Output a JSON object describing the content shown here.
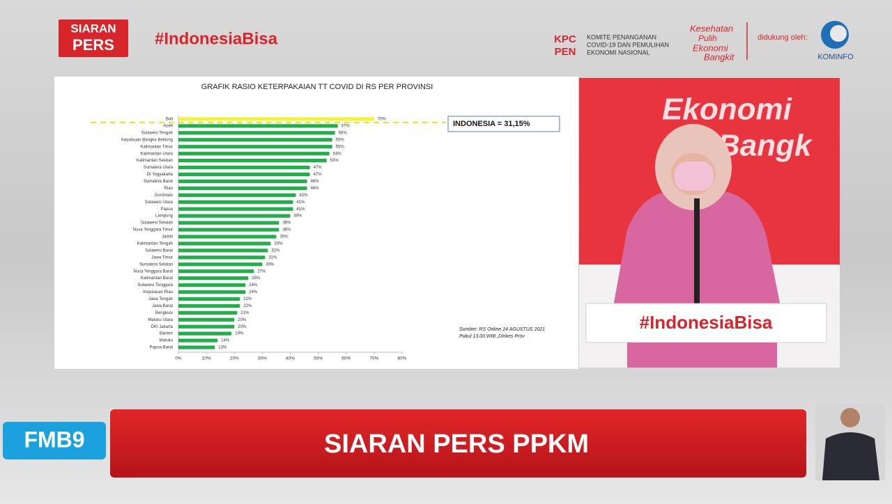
{
  "header": {
    "siaran": "SIARAN",
    "pers": "PERS",
    "hashtag": "#IndonesiaBisa",
    "kpc": "KPC",
    "pen": "PEN",
    "committee": [
      "KOMITE PENANGANAN",
      "COVID-19 DAN PEMULIHAN",
      "EKONOMI NASIONAL"
    ],
    "slogan": [
      "Kesehatan",
      "Pulih",
      "Ekonomi",
      "Bangkit"
    ],
    "supported": "didukung oleh:",
    "kominfo": "KOMINFO"
  },
  "chart_data": {
    "type": "bar",
    "orientation": "horizontal",
    "title": "GRAFIK RASIO KETERPAKAIAN TT COVID DI RS PER PROVINSI",
    "categories": [
      "Bali",
      "Aceh",
      "Sulawesi Tengah",
      "Kepulauan Bangka Belitung",
      "Kalimantan Timur",
      "Kalimantan Utara",
      "Kalimantan Selatan",
      "Sumatera Utara",
      "DI Yogyakarta",
      "Sumatera Barat",
      "Riau",
      "Gorontalo",
      "Sulawesi Utara",
      "Papua",
      "Lampung",
      "Sulawesi Selatan",
      "Nusa Tenggara Timur",
      "Jambi",
      "Kalimantan Tengah",
      "Sulawesi Barat",
      "Jawa Timur",
      "Sumatera Selatan",
      "Nusa Tenggara Barat",
      "Kalimantan Barat",
      "Sulawesi Tenggara",
      "Kepulauan Riau",
      "Jawa Tengah",
      "Jawa Barat",
      "Bengkulu",
      "Maluku Utara",
      "DKI Jakarta",
      "Banten",
      "Maluku",
      "Papua Barat"
    ],
    "values": [
      70,
      57,
      56,
      55,
      55,
      54,
      53,
      47,
      47,
      46,
      46,
      42,
      41,
      41,
      40,
      36,
      36,
      35,
      33,
      32,
      31,
      30,
      27,
      25,
      24,
      24,
      22,
      22,
      21,
      20,
      20,
      19,
      14,
      13
    ],
    "value_labels": [
      "70%",
      "57%",
      "56%",
      "55%",
      "55%",
      "54%",
      "53%",
      "47%",
      "47%",
      "46%",
      "46%",
      "42%",
      "41%",
      "41%",
      "40%",
      "36%",
      "36%",
      "35%",
      "33%",
      "32%",
      "31%",
      "30%",
      "27%",
      "25%",
      "24%",
      "24%",
      "22%",
      "22%",
      "21%",
      "20%",
      "20%",
      "19%",
      "14%",
      "13%"
    ],
    "colors": [
      "#f2f23c",
      "#22ae4a",
      "#22ae4a",
      "#22ae4a",
      "#22ae4a",
      "#22ae4a",
      "#22ae4a",
      "#22ae4a",
      "#22ae4a",
      "#22ae4a",
      "#22ae4a",
      "#22ae4a",
      "#22ae4a",
      "#22ae4a",
      "#22ae4a",
      "#22ae4a",
      "#22ae4a",
      "#22ae4a",
      "#22ae4a",
      "#22ae4a",
      "#22ae4a",
      "#22ae4a",
      "#22ae4a",
      "#22ae4a",
      "#22ae4a",
      "#22ae4a",
      "#22ae4a",
      "#22ae4a",
      "#22ae4a",
      "#22ae4a",
      "#22ae4a",
      "#22ae4a",
      "#22ae4a",
      "#22ae4a"
    ],
    "xlim": [
      0,
      80
    ],
    "xticks": [
      {
        "value": 0,
        "label": "0%"
      },
      {
        "value": 10,
        "label": "10%"
      },
      {
        "value": 20,
        "label": "20%"
      },
      {
        "value": 30,
        "label": "30%"
      },
      {
        "value": 40,
        "label": "40%"
      },
      {
        "value": 50,
        "label": "50%"
      },
      {
        "value": 60,
        "label": "60%"
      },
      {
        "value": 70,
        "label": "70%"
      },
      {
        "value": 80,
        "label": "80%"
      }
    ],
    "grid": false,
    "annotation": "INDONESIA = 31,15%",
    "source": [
      "Sumber: RS Online  24 AGUSTUS 2021",
      "Pukul 13.00 WIB ,Dinkes Prov"
    ]
  },
  "video": {
    "backdrop": [
      "Ekonomi",
      "Bangk"
    ],
    "podium": "#IndonesiaBisa"
  },
  "footer": {
    "channel": "FMB9",
    "banner": "SIARAN PERS PPKM"
  }
}
